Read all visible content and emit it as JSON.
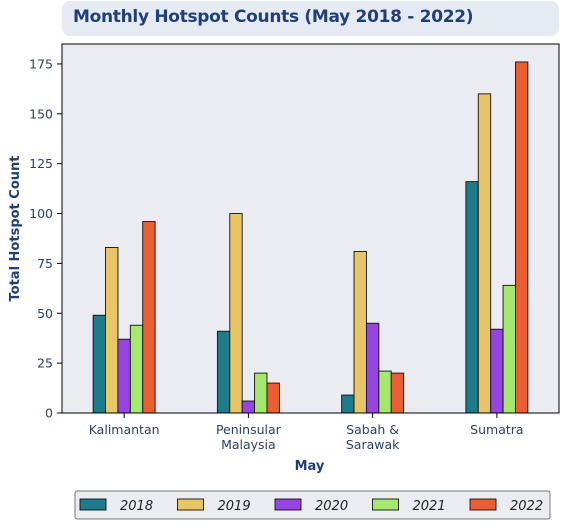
{
  "chart_data": {
    "type": "bar",
    "title": "Monthly Hotspot Counts (May 2018 - 2022)",
    "xlabel": "May",
    "ylabel": "Total Hotspot Count",
    "categories": [
      "Kalimantan",
      "Peninsular Malaysia",
      "Sabah & Sarawak",
      "Sumatra"
    ],
    "category_lines": [
      [
        "Kalimantan"
      ],
      [
        "Peninsular",
        "Malaysia"
      ],
      [
        "Sabah &",
        "Sarawak"
      ],
      [
        "Sumatra"
      ]
    ],
    "yticks": [
      0,
      25,
      50,
      75,
      100,
      125,
      150,
      175
    ],
    "ylim": [
      0,
      185
    ],
    "grid": false,
    "legend_position": "bottom",
    "series": [
      {
        "name": "2018",
        "color": "#1e7b8c",
        "values": [
          49,
          41,
          9,
          116
        ]
      },
      {
        "name": "2019",
        "color": "#e8c666",
        "values": [
          83,
          100,
          81,
          160
        ]
      },
      {
        "name": "2020",
        "color": "#9645e3",
        "values": [
          37,
          6,
          45,
          42
        ]
      },
      {
        "name": "2021",
        "color": "#a4e86e",
        "values": [
          44,
          20,
          21,
          64
        ]
      },
      {
        "name": "2022",
        "color": "#eb5d32",
        "values": [
          96,
          15,
          20,
          176
        ]
      }
    ]
  },
  "colors": {
    "plot_background": "#ebecf2",
    "title_background": "#e6eaf3",
    "title_text": "#1f3f78"
  }
}
